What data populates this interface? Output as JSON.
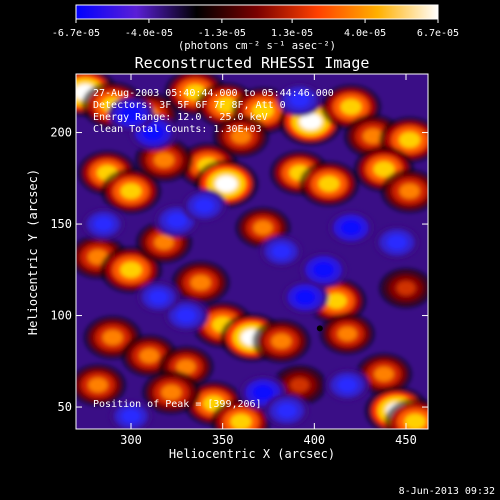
{
  "colorbar": {
    "tick_labels": [
      "-6.7e-05",
      "-4.0e-05",
      "-1.3e-05",
      "1.3e-05",
      "4.0e-05",
      "6.7e-05"
    ],
    "tick_values": [
      -6.7e-05,
      -4e-05,
      -1.3e-05,
      1.3e-05,
      4e-05,
      6.7e-05
    ],
    "range": [
      -6.7e-05,
      6.7e-05
    ],
    "unit_label": "(photons cm⁻² s⁻¹ asec⁻²)",
    "colors": [
      "#0000ff",
      "#5a1fd6",
      "#000000",
      "#7a0000",
      "#ff4000",
      "#ffb000",
      "#ffffff"
    ]
  },
  "chart_data": {
    "type": "heatmap",
    "title": "Reconstructed RHESSI Image",
    "xlabel": "Heliocentric X (arcsec)",
    "ylabel": "Heliocentric Y (arcsec)",
    "xlim": [
      270,
      462
    ],
    "ylim": [
      38,
      232
    ],
    "xticks": [
      300,
      350,
      400,
      450
    ],
    "yticks": [
      50,
      100,
      150,
      200
    ],
    "xtick_labels": [
      "300",
      "350",
      "400",
      "450"
    ],
    "ytick_labels": [
      "50",
      "100",
      "150",
      "200"
    ],
    "colormap": "rhessi-blue-black-red-white",
    "annotations": [
      "27-Aug-2003 05:40:44.000 to 05:44:46.000",
      "Detectors: 3F 5F 6F 7F 8F, Att 0",
      "Energy Range: 12.0 - 25.0 keV",
      "Clean    Total Counts: 1.30E+03"
    ],
    "peak_label": "Position of Peak = [399,206]",
    "peak": {
      "x": 399,
      "y": 206
    },
    "marker": {
      "x": 403,
      "y": 93
    },
    "blobs": [
      {
        "x": 275,
        "y": 222,
        "v": 1.0
      },
      {
        "x": 290,
        "y": 215,
        "v": 0.9
      },
      {
        "x": 310,
        "y": 210,
        "v": 0.7
      },
      {
        "x": 335,
        "y": 222,
        "v": 0.85
      },
      {
        "x": 352,
        "y": 215,
        "v": 0.8
      },
      {
        "x": 372,
        "y": 212,
        "v": 0.9
      },
      {
        "x": 398,
        "y": 206,
        "v": 1.0
      },
      {
        "x": 420,
        "y": 214,
        "v": 0.8
      },
      {
        "x": 432,
        "y": 198,
        "v": 0.7
      },
      {
        "x": 452,
        "y": 196,
        "v": 0.85
      },
      {
        "x": 360,
        "y": 198,
        "v": 0.6
      },
      {
        "x": 342,
        "y": 182,
        "v": 0.8
      },
      {
        "x": 352,
        "y": 172,
        "v": 1.0
      },
      {
        "x": 318,
        "y": 185,
        "v": 0.7
      },
      {
        "x": 287,
        "y": 178,
        "v": 0.75
      },
      {
        "x": 300,
        "y": 168,
        "v": 0.8
      },
      {
        "x": 392,
        "y": 178,
        "v": 0.75
      },
      {
        "x": 408,
        "y": 172,
        "v": 0.8
      },
      {
        "x": 438,
        "y": 180,
        "v": 0.8
      },
      {
        "x": 452,
        "y": 168,
        "v": 0.7
      },
      {
        "x": 282,
        "y": 132,
        "v": 0.7
      },
      {
        "x": 300,
        "y": 125,
        "v": 0.9
      },
      {
        "x": 318,
        "y": 140,
        "v": 0.6
      },
      {
        "x": 372,
        "y": 148,
        "v": 0.55
      },
      {
        "x": 338,
        "y": 118,
        "v": 0.7
      },
      {
        "x": 350,
        "y": 95,
        "v": 0.85
      },
      {
        "x": 366,
        "y": 88,
        "v": 1.0
      },
      {
        "x": 382,
        "y": 86,
        "v": 0.7
      },
      {
        "x": 290,
        "y": 88,
        "v": 0.7
      },
      {
        "x": 310,
        "y": 78,
        "v": 0.6
      },
      {
        "x": 330,
        "y": 72,
        "v": 0.55
      },
      {
        "x": 345,
        "y": 52,
        "v": 0.75
      },
      {
        "x": 360,
        "y": 42,
        "v": 0.8
      },
      {
        "x": 322,
        "y": 58,
        "v": 0.7
      },
      {
        "x": 412,
        "y": 108,
        "v": 0.8
      },
      {
        "x": 418,
        "y": 90,
        "v": 0.55
      },
      {
        "x": 438,
        "y": 68,
        "v": 0.6
      },
      {
        "x": 445,
        "y": 48,
        "v": 1.0
      },
      {
        "x": 455,
        "y": 42,
        "v": 0.85
      },
      {
        "x": 392,
        "y": 62,
        "v": 0.5
      },
      {
        "x": 282,
        "y": 62,
        "v": 0.6
      },
      {
        "x": 450,
        "y": 115,
        "v": 0.5
      },
      {
        "x": 312,
        "y": 200,
        "v": -0.8
      },
      {
        "x": 300,
        "y": 210,
        "v": -0.7
      },
      {
        "x": 325,
        "y": 152,
        "v": -0.65
      },
      {
        "x": 340,
        "y": 160,
        "v": -0.6
      },
      {
        "x": 330,
        "y": 100,
        "v": -0.6
      },
      {
        "x": 315,
        "y": 110,
        "v": -0.5
      },
      {
        "x": 392,
        "y": 218,
        "v": -0.6
      },
      {
        "x": 405,
        "y": 125,
        "v": -0.8
      },
      {
        "x": 395,
        "y": 110,
        "v": -0.7
      },
      {
        "x": 420,
        "y": 148,
        "v": -0.7
      },
      {
        "x": 445,
        "y": 140,
        "v": -0.65
      },
      {
        "x": 372,
        "y": 58,
        "v": -0.7
      },
      {
        "x": 385,
        "y": 48,
        "v": -0.6
      },
      {
        "x": 418,
        "y": 62,
        "v": -0.55
      },
      {
        "x": 285,
        "y": 150,
        "v": -0.5
      },
      {
        "x": 300,
        "y": 45,
        "v": -0.5
      },
      {
        "x": 382,
        "y": 135,
        "v": -0.5
      }
    ]
  },
  "footer": {
    "timestamp": "8-Jun-2013 09:32"
  }
}
